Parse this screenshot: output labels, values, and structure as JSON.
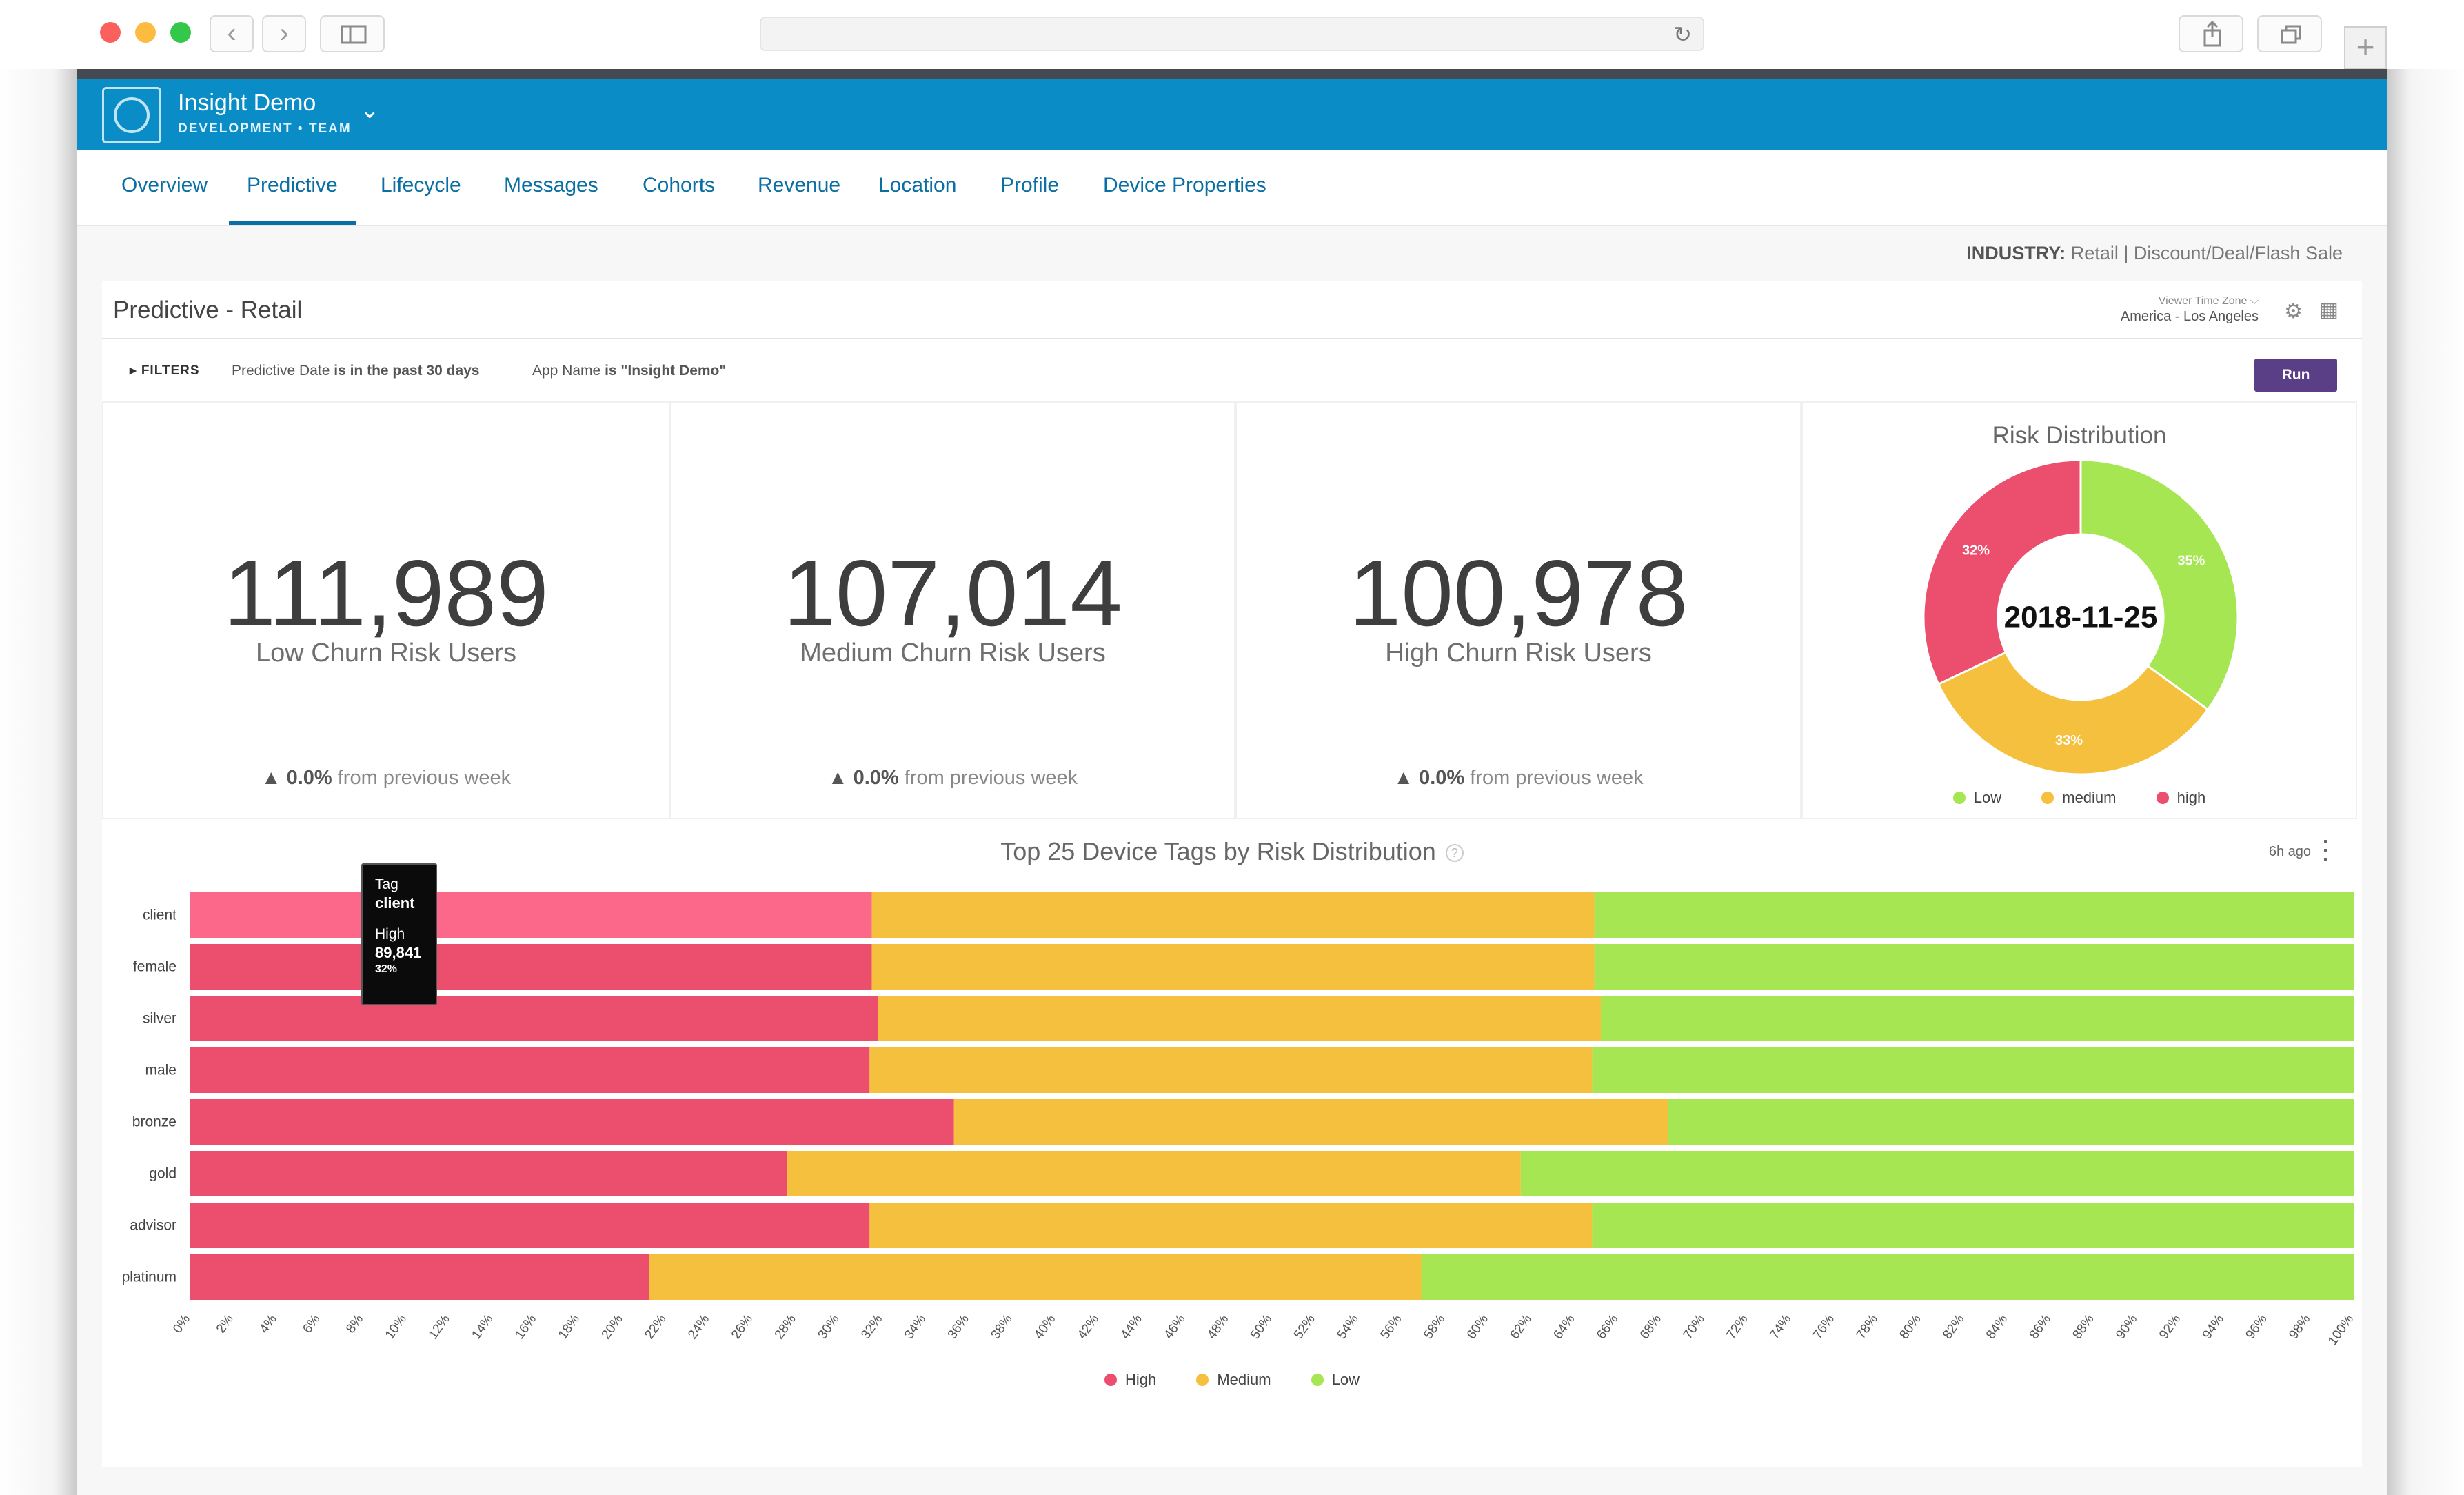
{
  "browser": {
    "back_icon": "‹",
    "forward_icon": "›",
    "reload_icon": "↻",
    "new_tab_icon": "+"
  },
  "app": {
    "name": "Insight Demo",
    "subtitle": "DEVELOPMENT • TEAM",
    "switcher_icon": "⌄"
  },
  "tabs": [
    "Overview",
    "Predictive",
    "Lifecycle",
    "Messages",
    "Cohorts",
    "Revenue",
    "Location",
    "Profile",
    "Device Properties"
  ],
  "active_tab": "Predictive",
  "industry": {
    "label": "INDUSTRY:",
    "value": "Retail | Discount/Deal/Flash Sale"
  },
  "panel": {
    "title": "Predictive - Retail",
    "timezone_label": "Viewer Time Zone ⌵",
    "timezone_value": "America - Los Angeles",
    "gear_icon": "⚙",
    "grid_icon": "▦"
  },
  "filters": {
    "label": "▸ FILTERS",
    "f1_field": "Predictive Date ",
    "f1_op": "is in the past 30 days",
    "f2_field": "App Name ",
    "f2_op": "is \"Insight Demo\"",
    "run_label": "Run"
  },
  "kpis": [
    {
      "value": "111,989",
      "label": "Low Churn Risk Users",
      "change": "▲ 0.0%",
      "change_suffix": " from previous week"
    },
    {
      "value": "107,014",
      "label": "Medium Churn Risk Users",
      "change": "▲ 0.0%",
      "change_suffix": " from previous week"
    },
    {
      "value": "100,978",
      "label": "High Churn Risk Users",
      "change": "▲ 0.0%",
      "change_suffix": " from previous week"
    }
  ],
  "colors": {
    "high": "#ec4f6d",
    "high_hover": "#fb6889",
    "medium": "#f5c03e",
    "low": "#a6e653",
    "accent": "#0a8dc7",
    "run": "#5a3f86"
  },
  "risk_distribution": {
    "title": "Risk Distribution",
    "center_label": "2018-11-25",
    "legend": [
      "Low",
      "medium",
      "high"
    ]
  },
  "device_tags": {
    "title": "Top 25 Device Tags by Risk Distribution",
    "help_icon": "?",
    "updated": "6h ago",
    "menu_icon": "⋮",
    "legend": [
      "High",
      "Medium",
      "Low"
    ],
    "tooltip": {
      "key": "Tag",
      "tag": "client",
      "series": "High",
      "value": "89,841",
      "pct": "32%"
    }
  },
  "chart_data": [
    {
      "type": "pie",
      "title": "Risk Distribution",
      "center_text": "2018-11-25",
      "labels": [
        "Low",
        "medium",
        "high"
      ],
      "values": [
        35,
        33,
        32
      ],
      "data_labels": [
        "35%",
        "33%",
        "32%"
      ]
    },
    {
      "type": "bar",
      "orientation": "horizontal",
      "stacked": "percent",
      "title": "Top 25 Device Tags by Risk Distribution",
      "categories": [
        "client",
        "female",
        "silver",
        "male",
        "bronze",
        "gold",
        "advisor",
        "platinum"
      ],
      "series": [
        {
          "name": "High",
          "values": [
            31.5,
            31.5,
            31.8,
            31.4,
            35.3,
            27.6,
            31.4,
            21.2
          ]
        },
        {
          "name": "Medium",
          "values": [
            33.4,
            33.4,
            33.4,
            33.4,
            33.0,
            33.9,
            33.4,
            35.7
          ]
        },
        {
          "name": "Low",
          "values": [
            35.1,
            35.1,
            34.8,
            35.2,
            31.7,
            38.5,
            35.2,
            43.1
          ]
        }
      ],
      "xlim": [
        0,
        100
      ],
      "xticks": [
        "0%",
        "2%",
        "4%",
        "6%",
        "8%",
        "10%",
        "12%",
        "14%",
        "16%",
        "18%",
        "20%",
        "22%",
        "24%",
        "26%",
        "28%",
        "30%",
        "32%",
        "34%",
        "36%",
        "38%",
        "40%",
        "42%",
        "44%",
        "46%",
        "48%",
        "50%",
        "52%",
        "54%",
        "56%",
        "58%",
        "60%",
        "62%",
        "64%",
        "66%",
        "68%",
        "70%",
        "72%",
        "74%",
        "76%",
        "78%",
        "80%",
        "82%",
        "84%",
        "86%",
        "88%",
        "90%",
        "92%",
        "94%",
        "96%",
        "98%",
        "100%"
      ],
      "legend_position": "bottom"
    }
  ]
}
